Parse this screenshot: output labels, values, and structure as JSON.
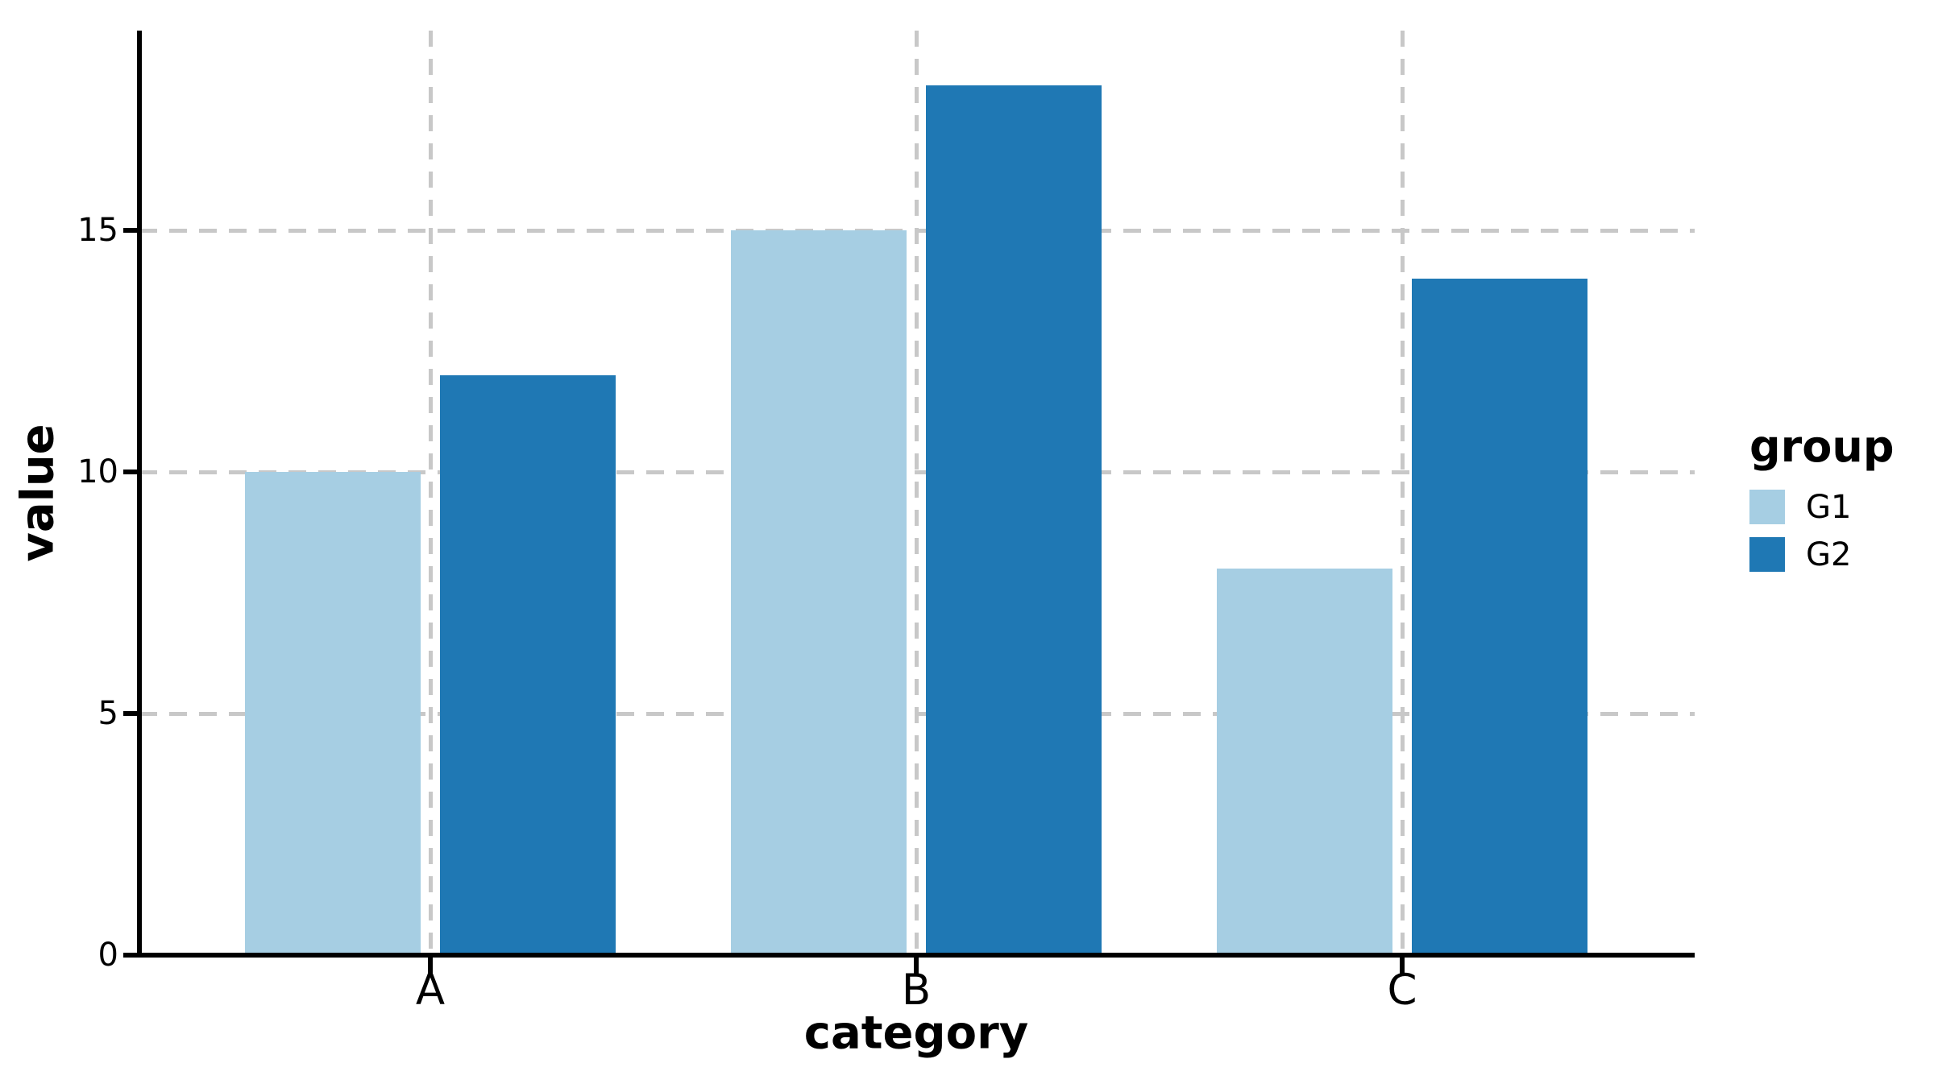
{
  "chart_data": {
    "type": "bar",
    "title": "",
    "categories": [
      "A",
      "B",
      "C"
    ],
    "series": [
      {
        "name": "G1",
        "color": "#a6cee3",
        "values": [
          10,
          15,
          8
        ]
      },
      {
        "name": "G2",
        "color": "#1f78b4",
        "values": [
          12,
          18,
          14
        ]
      }
    ],
    "xlabel": "category",
    "ylabel": "value",
    "legend_title": "group",
    "yticks": [
      0,
      5,
      10,
      15
    ],
    "ylim": [
      0,
      19.1
    ],
    "grid": "dashed-both-axes",
    "gridline_color": "#c8c8c8",
    "legend_position": "right-center",
    "background": "#ffffff"
  }
}
